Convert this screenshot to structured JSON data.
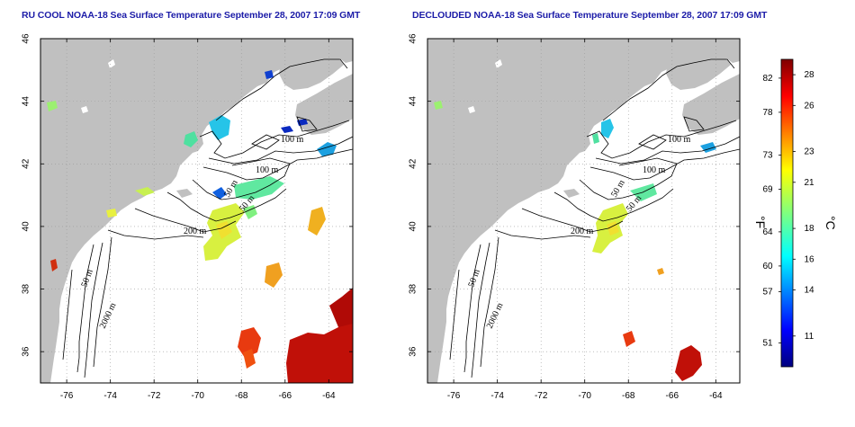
{
  "panels": [
    {
      "id": "left",
      "title": "RU COOL NOAA-18 Sea Surface Temperature September 28, 2007 17:09 GMT",
      "contour_labels": [
        "100 m",
        "100 m",
        "50 m",
        "50 m",
        "200 m",
        "50 m",
        "2000 m"
      ]
    },
    {
      "id": "right",
      "title": "DECLOUDED NOAA-18 Sea Surface Temperature September 28, 2007 17:09 GMT",
      "contour_labels": [
        "100 m",
        "100 m",
        "50 m",
        "50 m",
        "200 m",
        "50 m",
        "2000 m"
      ]
    }
  ],
  "axes": {
    "lon_ticks": [
      "-76",
      "-74",
      "-72",
      "-70",
      "-68",
      "-66",
      "-64"
    ],
    "lat_ticks": [
      "46",
      "44",
      "42",
      "40",
      "38",
      "36"
    ],
    "lon_range": [
      -77.2,
      -62.9
    ],
    "lat_range": [
      35.0,
      46.0
    ],
    "grid": "dotted"
  },
  "colorbar": {
    "unit_f": "°F",
    "unit_c": "°C",
    "fahrenheit_ticks": [
      "82",
      "78",
      "73",
      "69",
      "64",
      "60",
      "57",
      "51"
    ],
    "celsius_ticks": [
      "28",
      "26",
      "23",
      "21",
      "18",
      "16",
      "14",
      "11"
    ],
    "range_c": [
      9,
      29
    ],
    "colormap": "jet"
  },
  "colors": {
    "land": "#c0c0c0",
    "ocean": "#ffffff",
    "title": "#1c1ca8"
  }
}
